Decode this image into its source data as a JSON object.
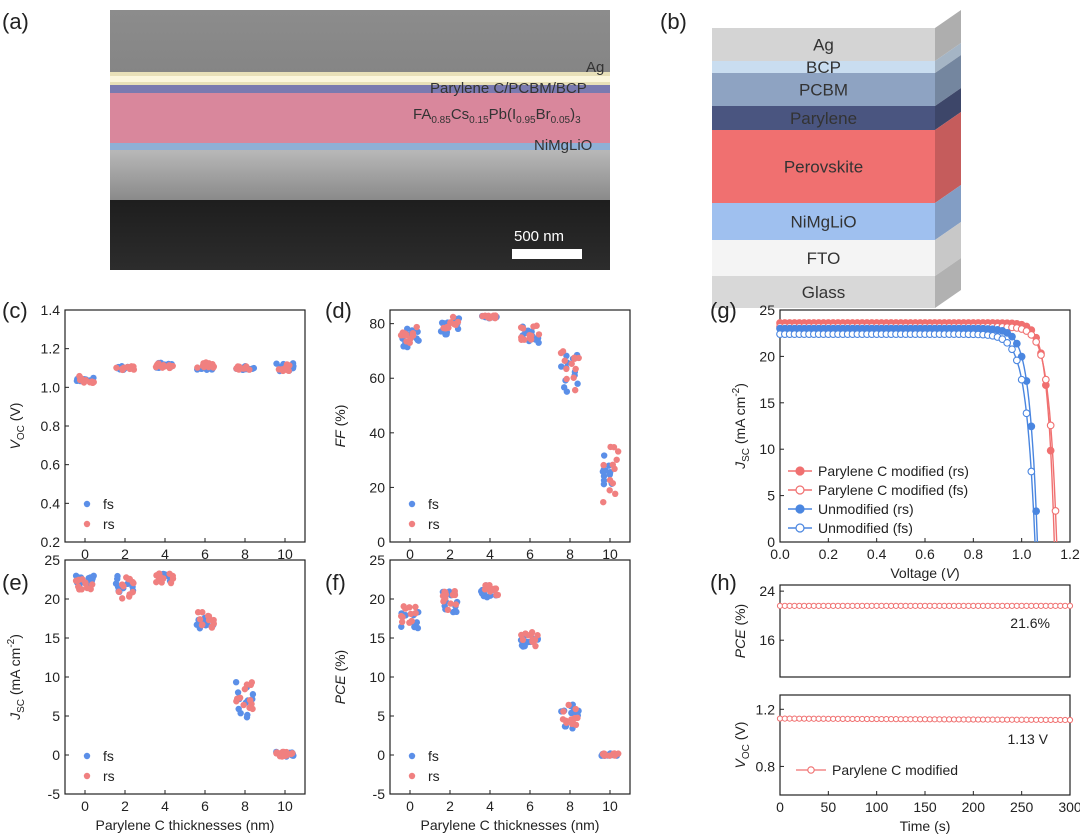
{
  "panels": {
    "a": {
      "label": "(a)",
      "layers": [
        "Ag",
        "Parylene C/PCBM/BCP",
        "NiMgLiO"
      ],
      "perovskite": {
        "base1": "FA",
        "sub1": "0.85",
        "base2": "Cs",
        "sub2": "0.15",
        "base3": "Pb(I",
        "sub3": "0.95",
        "base4": "Br",
        "sub4": "0.05",
        "base5": ")",
        "sub5": "3"
      },
      "scalebar": "500 nm"
    },
    "b": {
      "label": "(b)",
      "layers": [
        {
          "name": "Ag",
          "color": "#d4d4d4"
        },
        {
          "name": "BCP",
          "color": "#c9ddf0"
        },
        {
          "name": "PCBM",
          "color": "#8ea3c2"
        },
        {
          "name": "Parylene",
          "color": "#4a5580"
        },
        {
          "name": "Perovskite",
          "color": "#f07070"
        },
        {
          "name": "NiMgLiO",
          "color": "#9fc0ef"
        },
        {
          "name": "FTO",
          "color": "#f4f4f4"
        },
        {
          "name": "Glass",
          "color": "#d8d8d8"
        }
      ]
    }
  },
  "colors": {
    "fs": "#5b8fe8",
    "rs": "#f08080",
    "unmod": "#4a86e0",
    "mod": "#f07070"
  },
  "chart_data": [
    {
      "id": "c",
      "label": "(c)",
      "type": "scatter",
      "ylabel_main": "V",
      "ylabel_sub": "OC",
      "ylabel_tail": " (V)",
      "xlabel": "",
      "xlim": [
        -1,
        11
      ],
      "ylim": [
        0.2,
        1.4
      ],
      "xticks": [
        "0",
        "2",
        "4",
        "6",
        "8",
        "10"
      ],
      "yticks": [
        "0.2",
        "0.4",
        "0.6",
        "0.8",
        "1.0",
        "1.2",
        "1.4"
      ],
      "legend": [
        "fs",
        "rs"
      ],
      "groups": [
        {
          "x": 0,
          "fs": [
            1.03,
            1.05
          ],
          "rs": [
            1.02,
            1.06
          ]
        },
        {
          "x": 2,
          "fs": [
            1.09,
            1.11
          ],
          "rs": [
            1.09,
            1.11
          ]
        },
        {
          "x": 4,
          "fs": [
            1.1,
            1.13
          ],
          "rs": [
            1.1,
            1.13
          ]
        },
        {
          "x": 6,
          "fs": [
            1.09,
            1.12
          ],
          "rs": [
            1.08,
            1.13
          ]
        },
        {
          "x": 8,
          "fs": [
            1.09,
            1.11
          ],
          "rs": [
            1.09,
            1.11
          ]
        },
        {
          "x": 10,
          "fs": [
            1.08,
            1.13
          ],
          "rs": [
            1.08,
            1.12
          ]
        }
      ]
    },
    {
      "id": "d",
      "label": "(d)",
      "type": "scatter",
      "ylabel_main": "FF",
      "ylabel_sub": "",
      "ylabel_tail": " (%)",
      "xlabel": "",
      "xlim": [
        -1,
        11
      ],
      "ylim": [
        0,
        85
      ],
      "xticks": [
        "0",
        "2",
        "4",
        "6",
        "8",
        "10"
      ],
      "yticks": [
        "0",
        "20",
        "40",
        "60",
        "80"
      ],
      "legend": [
        "fs",
        "rs"
      ],
      "groups": [
        {
          "x": 0,
          "fs": [
            71,
            79
          ],
          "rs": [
            73,
            79
          ]
        },
        {
          "x": 2,
          "fs": [
            76,
            83
          ],
          "rs": [
            78,
            83
          ]
        },
        {
          "x": 4,
          "fs": [
            82,
            83
          ],
          "rs": [
            82,
            83
          ]
        },
        {
          "x": 6,
          "fs": [
            73,
            80
          ],
          "rs": [
            74,
            81
          ]
        },
        {
          "x": 8,
          "fs": [
            53,
            69
          ],
          "rs": [
            55,
            70
          ]
        },
        {
          "x": 10,
          "fs": [
            20,
            37
          ],
          "rs": [
            13,
            37
          ]
        }
      ]
    },
    {
      "id": "e",
      "label": "(e)",
      "type": "scatter",
      "ylabel_main": "J",
      "ylabel_sub": "SC",
      "ylabel_tail": " (mA cm",
      "ylabel_sup": "-2",
      "ylabel_end": ")",
      "xlabel": "Parylene C thicknesses (nm)",
      "xlim": [
        -1,
        11
      ],
      "ylim": [
        -5,
        25
      ],
      "xticks": [
        "0",
        "2",
        "4",
        "6",
        "8",
        "10"
      ],
      "yticks": [
        "-5",
        "0",
        "5",
        "10",
        "15",
        "20",
        "25"
      ],
      "legend": [
        "fs",
        "rs"
      ],
      "groups": [
        {
          "x": 0,
          "fs": [
            21.8,
            23.0
          ],
          "rs": [
            21.0,
            23.0
          ]
        },
        {
          "x": 2,
          "fs": [
            20.5,
            23.0
          ],
          "rs": [
            20.0,
            23.2
          ]
        },
        {
          "x": 4,
          "fs": [
            22.2,
            23.3
          ],
          "rs": [
            22.0,
            23.3
          ]
        },
        {
          "x": 6,
          "fs": [
            16.2,
            18.0
          ],
          "rs": [
            16.2,
            18.5
          ]
        },
        {
          "x": 8,
          "fs": [
            4.7,
            9.5
          ],
          "rs": [
            5.5,
            9.5
          ]
        },
        {
          "x": 10,
          "fs": [
            -0.2,
            0.4
          ],
          "rs": [
            -0.2,
            0.4
          ]
        }
      ]
    },
    {
      "id": "f",
      "label": "(f)",
      "type": "scatter",
      "ylabel_main": "PCE",
      "ylabel_sub": "",
      "ylabel_tail": " (%)",
      "xlabel": "Parylene C thicknesses (nm)",
      "xlim": [
        -1,
        11
      ],
      "ylim": [
        -5,
        25
      ],
      "xticks": [
        "0",
        "2",
        "4",
        "6",
        "8",
        "10"
      ],
      "yticks": [
        "-5",
        "0",
        "5",
        "10",
        "15",
        "20",
        "25"
      ],
      "legend": [
        "fs",
        "rs"
      ],
      "groups": [
        {
          "x": 0,
          "fs": [
            16.2,
            18.5
          ],
          "rs": [
            16.8,
            19.2
          ]
        },
        {
          "x": 2,
          "fs": [
            18.3,
            21.0
          ],
          "rs": [
            18.2,
            21.2
          ]
        },
        {
          "x": 4,
          "fs": [
            20.2,
            21.8
          ],
          "rs": [
            20.2,
            21.8
          ]
        },
        {
          "x": 6,
          "fs": [
            13.8,
            15.2
          ],
          "rs": [
            13.8,
            15.8
          ]
        },
        {
          "x": 8,
          "fs": [
            3.3,
            6.5
          ],
          "rs": [
            3.8,
            6.8
          ]
        },
        {
          "x": 10,
          "fs": [
            -0.1,
            0.2
          ],
          "rs": [
            -0.1,
            0.2
          ]
        }
      ]
    },
    {
      "id": "g",
      "label": "(g)",
      "type": "line",
      "ylabel_main": "J",
      "ylabel_sub": "SC",
      "ylabel_tail": " (mA cm",
      "ylabel_sup": "-2",
      "ylabel_end": ")",
      "xlabel_main": "Voltage (",
      "xlabel_it": "V",
      "xlabel_end": ")",
      "xlim": [
        0,
        1.2
      ],
      "ylim": [
        0,
        25
      ],
      "xticks": [
        "0.0",
        "0.2",
        "0.4",
        "0.6",
        "0.8",
        "1.0",
        "1.2"
      ],
      "yticks": [
        "0",
        "5",
        "10",
        "15",
        "20",
        "25"
      ],
      "legend_position": "bottom-left",
      "series": [
        {
          "name": "Parylene C modified (rs)",
          "jsc": 23.6,
          "voc": 1.135,
          "shape": 6,
          "filled": true,
          "color": "mod"
        },
        {
          "name": "Parylene C modified (fs)",
          "jsc": 23.2,
          "voc": 1.145,
          "shape": 5.2,
          "filled": false,
          "color": "mod"
        },
        {
          "name": "Unmodified (rs)",
          "jsc": 23.0,
          "voc": 1.065,
          "shape": 5.2,
          "filled": true,
          "color": "unmod"
        },
        {
          "name": "Unmodified (fs)",
          "jsc": 22.4,
          "voc": 1.055,
          "shape": 4.6,
          "filled": false,
          "color": "unmod"
        }
      ]
    },
    {
      "id": "h1",
      "label": "(h)",
      "type": "line",
      "ylabel_main": "PCE",
      "ylabel_sub": "",
      "ylabel_tail": " (%)",
      "xlim": [
        0,
        300
      ],
      "ylim": [
        10,
        25
      ],
      "yticks": [
        "16",
        "24"
      ],
      "ytick_values": [
        16,
        24
      ],
      "series": [
        {
          "name": "Parylene C modified",
          "value": 21.6
        }
      ],
      "annotation": "21.6%"
    },
    {
      "id": "h2",
      "label": "",
      "type": "line",
      "ylabel_main": "V",
      "ylabel_sub": "OC",
      "ylabel_tail": " (V)",
      "xlabel": "Time (s)",
      "xlim": [
        0,
        300
      ],
      "ylim": [
        0.6,
        1.3
      ],
      "xticks": [
        "0",
        "50",
        "100",
        "150",
        "200",
        "250",
        "300"
      ],
      "yticks": [
        "0.8",
        "1.2"
      ],
      "ytick_values": [
        0.8,
        1.2
      ],
      "series": [
        {
          "name": "Parylene C modified",
          "value_start": 1.135,
          "value_end": 1.125
        }
      ],
      "annotation": "1.13 V",
      "legend": [
        "Parylene C modified"
      ]
    }
  ]
}
